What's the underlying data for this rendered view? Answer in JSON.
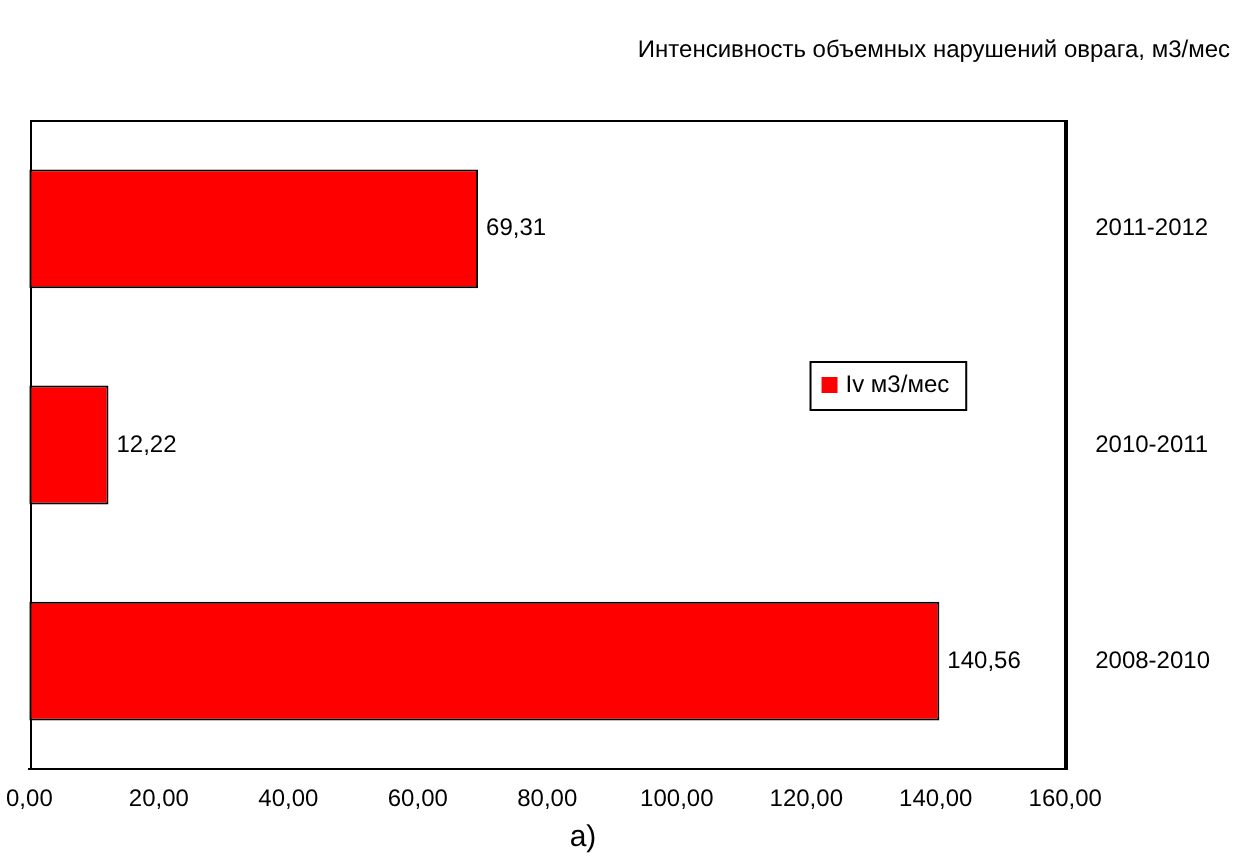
{
  "chart_data": {
    "type": "bar",
    "orientation": "horizontal",
    "title": "Интенсивность объемных нарушений оврага, м3/мес",
    "categories": [
      "2011-2012",
      "2010-2011",
      "2008-2010"
    ],
    "series": [
      {
        "name": "Iv м3/мес",
        "color": "#ff0000",
        "values": [
          69.31,
          12.22,
          140.56
        ],
        "value_labels": [
          "69,31",
          "12,22",
          "140,56"
        ]
      }
    ],
    "xlim": [
      0,
      160
    ],
    "xticks": [
      {
        "value": 0,
        "label": "0,00"
      },
      {
        "value": 20,
        "label": "20,00"
      },
      {
        "value": 40,
        "label": "40,00"
      },
      {
        "value": 60,
        "label": "60,00"
      },
      {
        "value": 80,
        "label": "80,00"
      },
      {
        "value": 100,
        "label": "100,00"
      },
      {
        "value": 120,
        "label": "120,00"
      },
      {
        "value": 140,
        "label": "140,00"
      },
      {
        "value": 160,
        "label": "160,00"
      }
    ],
    "grid": false,
    "legend": "right",
    "annotations": [
      "а)"
    ]
  }
}
